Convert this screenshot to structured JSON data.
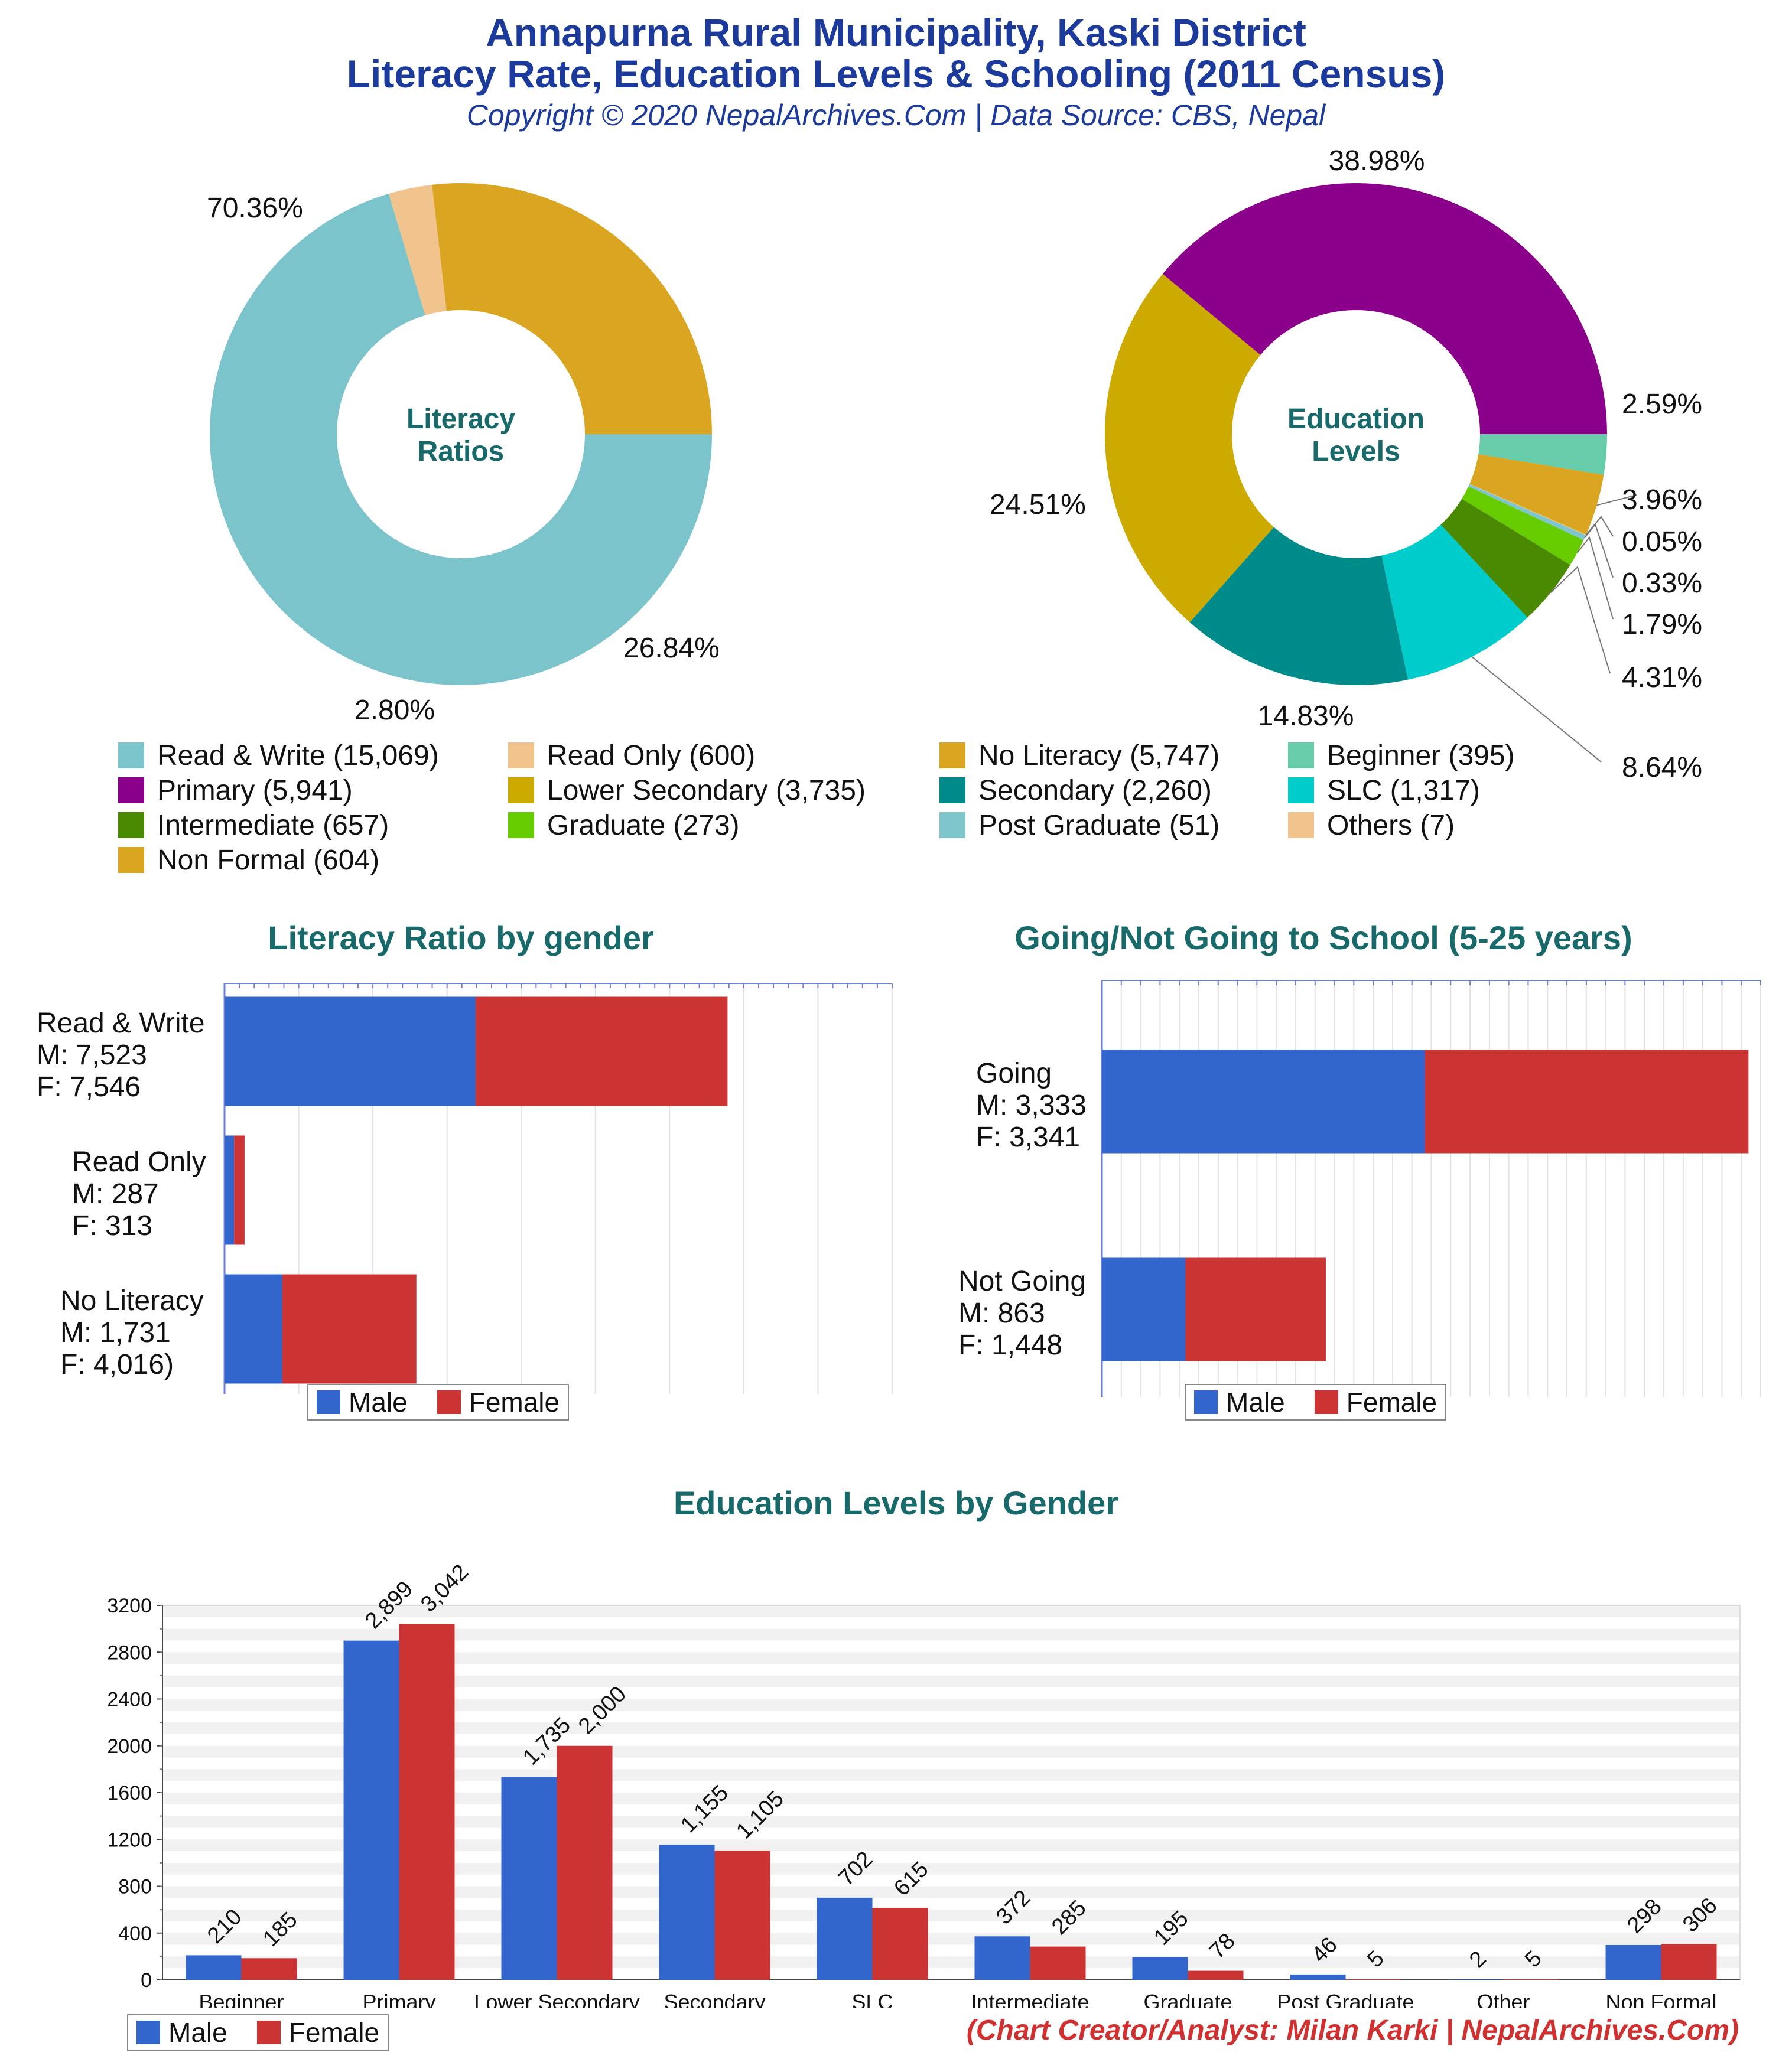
{
  "header": {
    "title_line1": "Annapurna Rural Municipality, Kaski District",
    "title_line2": "Literacy Rate, Education Levels & Schooling (2011 Census)",
    "subtitle": "Copyright © 2020 NepalArchives.Com | Data Source: CBS, Nepal"
  },
  "footer": {
    "credit": "(Chart Creator/Analyst: Milan Karki | NepalArchives.Com)"
  },
  "colors": {
    "male": "#3366cc",
    "female": "#cc3333",
    "title_teal": "#17696a",
    "title_blue": "#1b3a9b"
  },
  "legend": [
    {
      "label": "Read & Write (15,069)",
      "color": "#7cc4cc"
    },
    {
      "label": "Read Only (600)",
      "color": "#f0c48c"
    },
    {
      "label": "No Literacy (5,747)",
      "color": "#daa520"
    },
    {
      "label": "Beginner (395)",
      "color": "#66ccaa"
    },
    {
      "label": "Primary (5,941)",
      "color": "#8b008b"
    },
    {
      "label": "Lower Secondary (3,735)",
      "color": "#ccaa00"
    },
    {
      "label": "Secondary (2,260)",
      "color": "#008b8b"
    },
    {
      "label": "SLC (1,317)",
      "color": "#00cccc"
    },
    {
      "label": "Intermediate (657)",
      "color": "#4a8a00"
    },
    {
      "label": "Graduate (273)",
      "color": "#66cc00"
    },
    {
      "label": "Post Graduate (51)",
      "color": "#7ec5cc"
    },
    {
      "label": "Others (7)",
      "color": "#f0c48c"
    },
    {
      "label": "Non Formal (604)",
      "color": "#daa520"
    }
  ],
  "chart_data": [
    {
      "type": "pie",
      "center_label": [
        "Literacy",
        "Ratios"
      ],
      "slices": [
        {
          "name": "Read & Write",
          "value": 15069,
          "pct_label": "70.36%",
          "color": "#7cc4cc"
        },
        {
          "name": "Read Only",
          "value": 600,
          "pct_label": "2.80%",
          "color": "#f0c48c"
        },
        {
          "name": "No Literacy",
          "value": 5747,
          "pct_label": "26.84%",
          "color": "#daa520"
        }
      ]
    },
    {
      "type": "pie",
      "center_label": [
        "Education",
        "Levels"
      ],
      "slices": [
        {
          "name": "Beginner",
          "value": 395,
          "pct_label": "2.59%",
          "color": "#66ccaa"
        },
        {
          "name": "Non Formal",
          "value": 604,
          "pct_label": "3.96%",
          "color": "#daa520"
        },
        {
          "name": "Others",
          "value": 7,
          "pct_label": "0.05%",
          "color": "#f0c48c"
        },
        {
          "name": "Post Graduate",
          "value": 51,
          "pct_label": "0.33%",
          "color": "#7ec5cc"
        },
        {
          "name": "Graduate",
          "value": 273,
          "pct_label": "1.79%",
          "color": "#66cc00"
        },
        {
          "name": "Intermediate",
          "value": 657,
          "pct_label": "4.31%",
          "color": "#4a8a00"
        },
        {
          "name": "SLC",
          "value": 1317,
          "pct_label": "8.64%",
          "color": "#00cccc"
        },
        {
          "name": "Secondary",
          "value": 2260,
          "pct_label": "14.83%",
          "color": "#008b8b"
        },
        {
          "name": "Lower Secondary",
          "value": 3735,
          "pct_label": "24.51%",
          "color": "#ccaa00"
        },
        {
          "name": "Primary",
          "value": 5941,
          "pct_label": "38.98%",
          "color": "#8b008b"
        }
      ]
    },
    {
      "type": "bar",
      "orientation": "horizontal",
      "stacked": true,
      "title": "Literacy Ratio by gender",
      "categories": [
        {
          "label": [
            "Read & Write",
            "M: 7,523",
            "F: 7,546"
          ]
        },
        {
          "label": [
            "Read Only",
            "M: 287",
            "F: 313"
          ]
        },
        {
          "label": [
            "No Literacy",
            "M: 1,731",
            "F: 4,016)"
          ]
        }
      ],
      "series": [
        {
          "name": "Male",
          "values": [
            7523,
            287,
            1731
          ]
        },
        {
          "name": "Female",
          "values": [
            7546,
            313,
            4016
          ]
        }
      ],
      "xlim": [
        0,
        20000
      ]
    },
    {
      "type": "bar",
      "orientation": "horizontal",
      "stacked": true,
      "title": "Going/Not Going to School (5-25 years)",
      "categories": [
        {
          "label": [
            "Going",
            "M: 3,333",
            "F: 3,341"
          ]
        },
        {
          "label": [
            "Not Going",
            "M: 863",
            "F: 1,448"
          ]
        }
      ],
      "series": [
        {
          "name": "Male",
          "values": [
            3333,
            863
          ]
        },
        {
          "name": "Female",
          "values": [
            3341,
            1448
          ]
        }
      ],
      "xlim": [
        0,
        6800
      ]
    },
    {
      "type": "bar",
      "title": "Education Levels by Gender",
      "categories": [
        "Beginner",
        "Primary",
        "Lower Secondary",
        "Secondary",
        "SLC",
        "Intermediate",
        "Graduate",
        "Post Graduate",
        "Other",
        "Non Formal"
      ],
      "series": [
        {
          "name": "Male",
          "values": [
            210,
            2899,
            1735,
            1155,
            702,
            372,
            195,
            46,
            2,
            298
          ],
          "labels": [
            "210",
            "2,899",
            "1,735",
            "1,155",
            "702",
            "372",
            "195",
            "46",
            "2",
            "298"
          ]
        },
        {
          "name": "Female",
          "values": [
            185,
            3042,
            2000,
            1105,
            615,
            285,
            78,
            5,
            5,
            306
          ],
          "labels": [
            "185",
            "3,042",
            "2,000",
            "1,105",
            "615",
            "285",
            "78",
            "5",
            "5",
            "306"
          ]
        }
      ],
      "ylim": [
        0,
        3200
      ],
      "yticks": [
        "0",
        "400",
        "800",
        "1200",
        "1600",
        "2000",
        "2400",
        "2800",
        "3200"
      ]
    }
  ]
}
